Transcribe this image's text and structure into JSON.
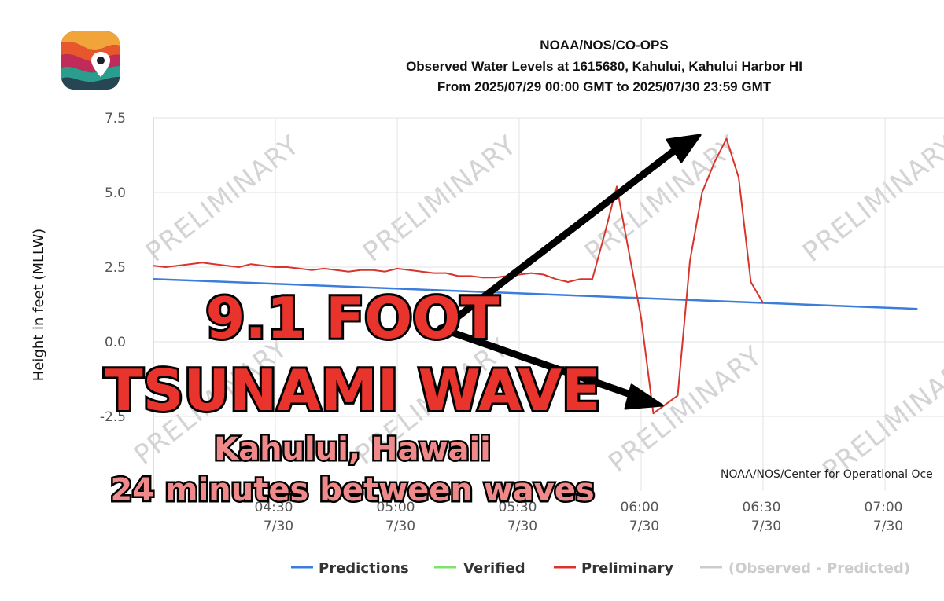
{
  "app_icon": {
    "name": "weather-map-pin-icon"
  },
  "chart_data": {
    "type": "line",
    "title": [
      "NOAA/NOS/CO-OPS",
      "Observed Water Levels at 1615680, Kahului, Kahului Harbor HI",
      "From 2025/07/29 00:00 GMT to 2025/07/30 23:59 GMT"
    ],
    "ylabel": "Height in feet (MLLW)",
    "ylim": [
      -4.2,
      7.5
    ],
    "yticks": [
      "7.5",
      "5.0",
      "2.5",
      "0.0",
      "-2.5"
    ],
    "xticks": [
      {
        "time": "04:30",
        "date": "7/30"
      },
      {
        "time": "05:00",
        "date": "7/30"
      },
      {
        "time": "05:30",
        "date": "7/30"
      },
      {
        "time": "06:00",
        "date": "7/30"
      },
      {
        "time": "06:30",
        "date": "7/30"
      },
      {
        "time": "07:00",
        "date": "7/30"
      }
    ],
    "grid": true,
    "credit": "NOAA/NOS/Center for Operational Oce",
    "watermark": "PRELIMINARY",
    "legend": [
      {
        "label": "Predictions",
        "color": "#3a7ddb"
      },
      {
        "label": "Verified",
        "color": "#7de36b"
      },
      {
        "label": "Preliminary",
        "color": "#d9342b"
      },
      {
        "label": "(Observed - Predicted)",
        "color": "#cccccc"
      }
    ],
    "series": [
      {
        "name": "Predictions",
        "color": "#3a7ddb",
        "x": [
          "04:00",
          "07:08"
        ],
        "y": [
          2.1,
          1.1
        ]
      },
      {
        "name": "Preliminary",
        "color": "#d9342b",
        "x": [
          "04:00",
          "04:03",
          "04:06",
          "04:09",
          "04:12",
          "04:15",
          "04:18",
          "04:21",
          "04:24",
          "04:27",
          "04:30",
          "04:33",
          "04:36",
          "04:39",
          "04:42",
          "04:45",
          "04:48",
          "04:51",
          "04:54",
          "04:57",
          "05:00",
          "05:03",
          "05:06",
          "05:09",
          "05:12",
          "05:15",
          "05:18",
          "05:21",
          "05:24",
          "05:27",
          "05:30",
          "05:33",
          "05:36",
          "05:39",
          "05:42",
          "05:45",
          "05:48",
          "05:51",
          "05:54",
          "05:57",
          "06:00",
          "06:03",
          "06:06",
          "06:09",
          "06:12",
          "06:15",
          "06:18",
          "06:21",
          "06:24",
          "06:27",
          "06:30"
        ],
        "y": [
          2.55,
          2.5,
          2.55,
          2.6,
          2.65,
          2.6,
          2.55,
          2.5,
          2.6,
          2.55,
          2.5,
          2.5,
          2.45,
          2.4,
          2.45,
          2.4,
          2.35,
          2.4,
          2.4,
          2.35,
          2.45,
          2.4,
          2.35,
          2.3,
          2.3,
          2.2,
          2.2,
          2.15,
          2.15,
          2.2,
          2.25,
          2.3,
          2.25,
          2.1,
          2.0,
          2.1,
          2.1,
          3.6,
          5.2,
          3.0,
          0.8,
          -2.4,
          -2.1,
          -1.8,
          2.7,
          5.0,
          6.0,
          6.8,
          5.5,
          2.0,
          1.3
        ]
      }
    ]
  },
  "overlay": {
    "headline_1": "9.1 FOOT",
    "headline_2": "TSUNAMI WAVE",
    "sub_1": "Kahului, Hawaii",
    "sub_2": "24 minutes between waves"
  }
}
